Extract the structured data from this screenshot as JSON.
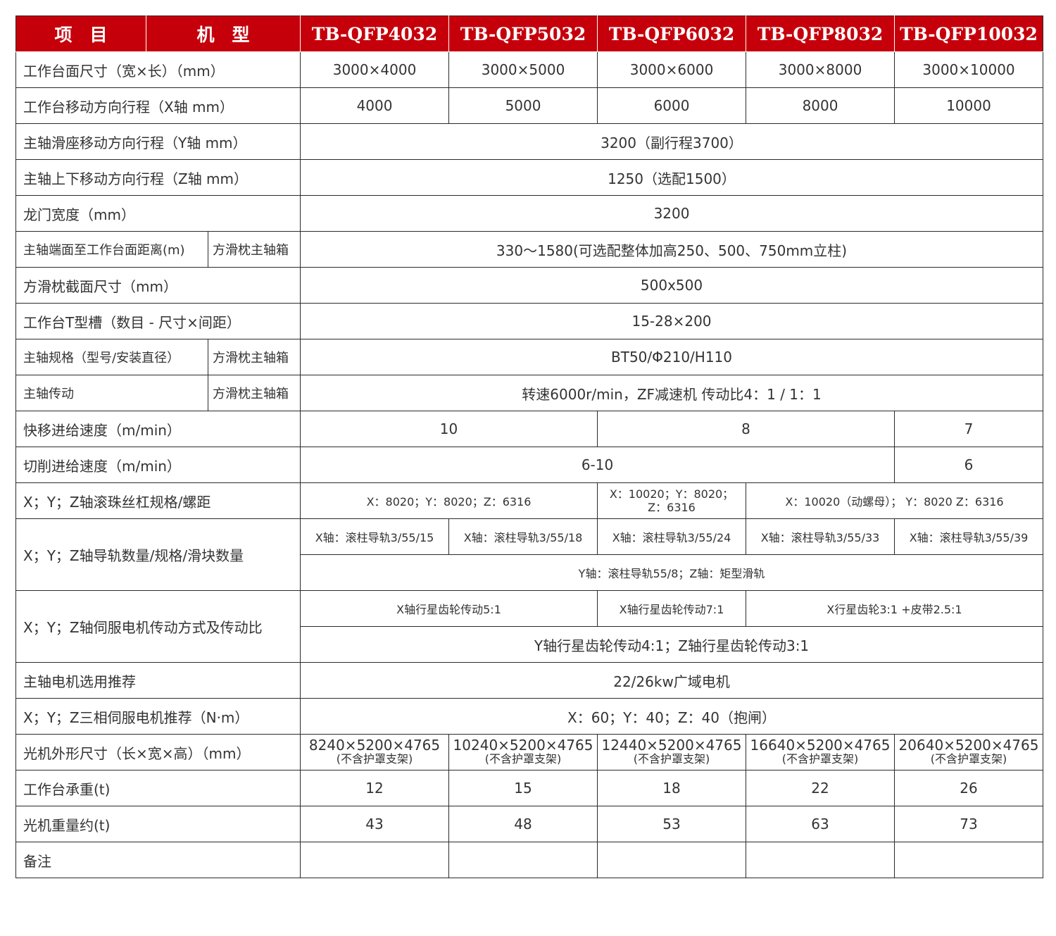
{
  "header": {
    "item": "项　目",
    "model": "机　型",
    "models": [
      "TB-QFP4032",
      "TB-QFP5032",
      "TB-QFP6032",
      "TB-QFP8032",
      "TB-QFP10032"
    ]
  },
  "colors": {
    "header_bg": "#c6000b",
    "header_text": "#ffffff",
    "border": "#2a2a2a"
  },
  "rows": [
    {
      "label": "工作台面尺寸（宽×长）（mm）",
      "cells": [
        {
          "t": "3000×4000"
        },
        {
          "t": "3000×5000"
        },
        {
          "t": "3000×6000"
        },
        {
          "t": "3000×8000"
        },
        {
          "t": "3000×10000"
        }
      ]
    },
    {
      "label": "工作台移动方向行程（X轴 mm）",
      "cells": [
        {
          "t": "4000"
        },
        {
          "t": "5000"
        },
        {
          "t": "6000"
        },
        {
          "t": "8000"
        },
        {
          "t": "10000"
        }
      ]
    },
    {
      "label": "主轴滑座移动方向行程（Y轴 mm）",
      "cells": [
        {
          "t": "3200（副行程3700）",
          "span": 5
        }
      ]
    },
    {
      "label": "主轴上下移动方向行程（Z轴 mm）",
      "cells": [
        {
          "t": "1250（选配1500）",
          "span": 5
        }
      ]
    },
    {
      "label": "龙门宽度（mm）",
      "cells": [
        {
          "t": "3200",
          "span": 5
        }
      ]
    },
    {
      "label": "主轴端面至工作台面距离(m)",
      "sub": "方滑枕主轴箱",
      "cells": [
        {
          "t": "330～1580(可选配整体加高250、500、750mm立柱)",
          "span": 5
        }
      ]
    },
    {
      "label": "方滑枕截面尺寸（mm）",
      "cells": [
        {
          "t": "500x500",
          "span": 5
        }
      ]
    },
    {
      "label": "工作台T型槽（数目 - 尺寸×间距）",
      "cells": [
        {
          "t": "15-28×200",
          "span": 5
        }
      ]
    },
    {
      "label": "主轴规格（型号/安装直径）",
      "sub": "方滑枕主轴箱",
      "cells": [
        {
          "t": "BT50/Φ210/H110",
          "span": 5
        }
      ]
    },
    {
      "label": "主轴传动",
      "sub": "方滑枕主轴箱",
      "cells": [
        {
          "t": "转速6000r/min，ZF减速机 传动比4：1 / 1：1",
          "span": 5
        }
      ]
    },
    {
      "label": "快移进给速度（m/min）",
      "cells": [
        {
          "t": "10",
          "span": 2
        },
        {
          "t": "8",
          "span": 2
        },
        {
          "t": "7"
        }
      ]
    },
    {
      "label": "切削进给速度（m/min）",
      "cells": [
        {
          "t": "6-10",
          "span": 4
        },
        {
          "t": "6"
        }
      ]
    },
    {
      "label": "X；Y；Z轴滚珠丝杠规格/螺距",
      "cells": [
        {
          "t": "X：8020；Y：8020；Z：6316",
          "span": 2,
          "small": true
        },
        {
          "t": "X：10020；Y：8020；",
          "t2": "Z：6316",
          "small": true
        },
        {
          "t": "X：10020（动螺母）；  Y：8020 Z：6316",
          "span": 2,
          "small": true
        }
      ]
    },
    {
      "label": "X；Y；Z轴导轨数量/规格/滑块数量",
      "rowspan": 2,
      "cells": [
        {
          "t": "X轴：滚柱导轨3/55/15",
          "small": true
        },
        {
          "t": "X轴：滚柱导轨3/55/18",
          "small": true
        },
        {
          "t": "X轴：滚柱导轨3/55/24",
          "small": true
        },
        {
          "t": "X轴：滚柱导轨3/55/33",
          "small": true
        },
        {
          "t": "X轴：滚柱导轨3/55/39",
          "small": true
        }
      ]
    },
    {
      "cont": true,
      "cells": [
        {
          "t": "Y轴：滚柱导轨55/8；Z轴：矩型滑轨",
          "span": 5,
          "small": true
        }
      ]
    },
    {
      "label": "X；Y；Z轴伺服电机传动方式及传动比",
      "rowspan": 2,
      "cells": [
        {
          "t": "X轴行星齿轮传动5:1",
          "span": 2,
          "small": true
        },
        {
          "t": "X轴行星齿轮传动7:1",
          "small": true
        },
        {
          "t": "X行星齿轮3:1 +皮带2.5:1",
          "span": 2,
          "small": true
        }
      ]
    },
    {
      "cont": true,
      "cells": [
        {
          "t": "Y轴行星齿轮传动4:1；Z轴行星齿轮传动3:1",
          "span": 5
        }
      ]
    },
    {
      "label": "主轴电机选用推荐",
      "cells": [
        {
          "t": "22/26kw广域电机",
          "span": 5
        }
      ]
    },
    {
      "label": "X；Y；Z三相伺服电机推荐（N·m）",
      "cells": [
        {
          "t": "X：60；Y：40；Z：40（抱闸）",
          "span": 5
        }
      ]
    },
    {
      "label": "光机外形尺寸（长×宽×高）（mm）",
      "cells": [
        {
          "t": "8240×5200×4765",
          "t2": "(不含护罩支架)"
        },
        {
          "t": "10240×5200×4765",
          "t2": "(不含护罩支架)"
        },
        {
          "t": "12440×5200×4765",
          "t2": "(不含护罩支架)"
        },
        {
          "t": "16640×5200×4765",
          "t2": "(不含护罩支架)"
        },
        {
          "t": "20640×5200×4765",
          "t2": "(不含护罩支架)"
        }
      ]
    },
    {
      "label": "工作台承重(t)",
      "cells": [
        {
          "t": "12"
        },
        {
          "t": "15"
        },
        {
          "t": "18"
        },
        {
          "t": "22"
        },
        {
          "t": "26"
        }
      ]
    },
    {
      "label": "光机重量约(t)",
      "cells": [
        {
          "t": "43"
        },
        {
          "t": "48"
        },
        {
          "t": "53"
        },
        {
          "t": "63"
        },
        {
          "t": "73"
        }
      ]
    },
    {
      "label": "备注",
      "cells": [
        {
          "t": ""
        },
        {
          "t": ""
        },
        {
          "t": ""
        },
        {
          "t": ""
        },
        {
          "t": ""
        }
      ]
    }
  ]
}
